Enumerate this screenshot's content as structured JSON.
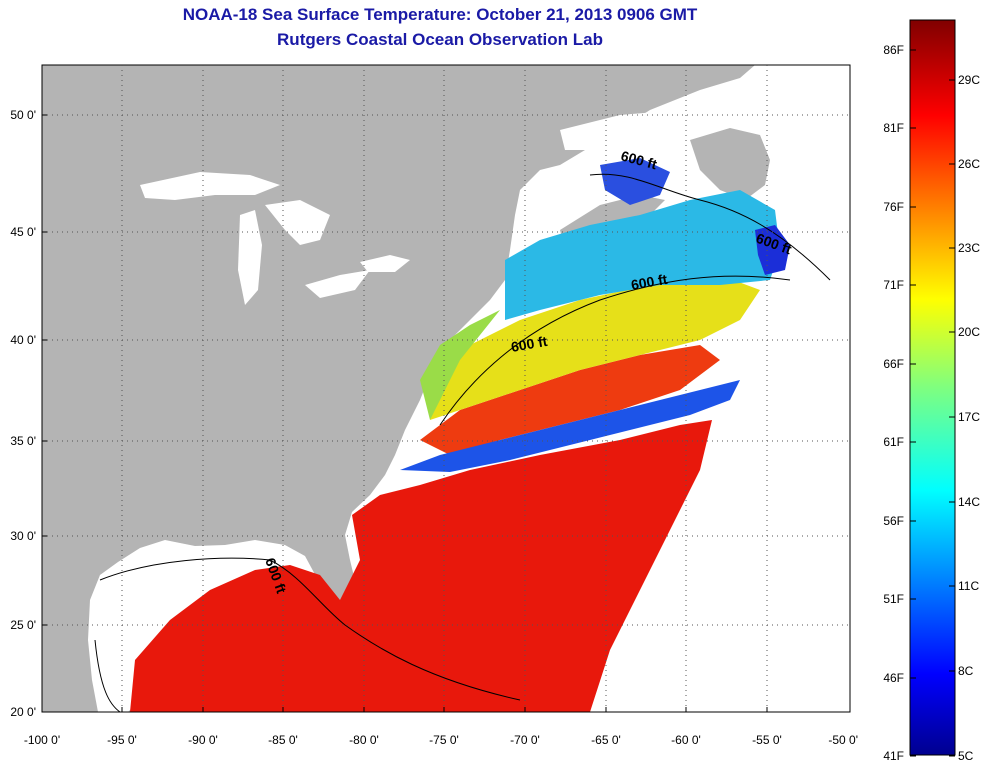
{
  "header": {
    "title": "NOAA-18 Sea Surface Temperature:  October 21, 2013 0906 GMT",
    "subtitle": "Rutgers Coastal Ocean Observation Lab"
  },
  "map": {
    "lat_labels": [
      "50 0'",
      "45 0'",
      "40 0'",
      "35 0'",
      "30 0'",
      "25 0'",
      "20 0'"
    ],
    "lon_labels": [
      "-100 0'",
      "-95 0'",
      "-90 0'",
      "-85 0'",
      "-80 0'",
      "-75 0'",
      "-70 0'",
      "-65 0'",
      "-60 0'",
      "-55 0'",
      "-50 0'"
    ],
    "contour_labels": [
      "600 ft",
      "600 ft",
      "600 ft",
      "600 ft",
      "600 ft"
    ],
    "colors": {
      "land": "#b4b4b4",
      "no_data": "#ffffff",
      "grid": "#555555"
    }
  },
  "colorbar": {
    "fahrenheit_labels": [
      "86F",
      "81F",
      "76F",
      "71F",
      "66F",
      "61F",
      "56F",
      "51F",
      "46F",
      "41F"
    ],
    "celsius_labels": [
      "29C",
      "26C",
      "23C",
      "20C",
      "17C",
      "14C",
      "11C",
      "8C",
      "5C"
    ],
    "colormap": "jet"
  }
}
